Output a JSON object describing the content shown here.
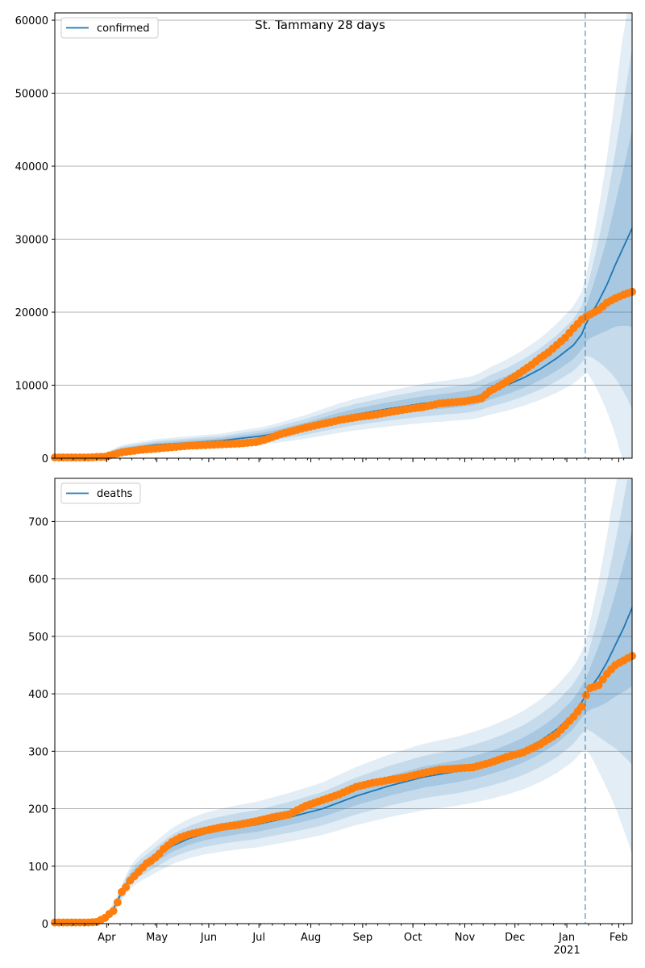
{
  "figure": {
    "title": "St. Tammany 28 days"
  },
  "colors": {
    "model": "#1f77b4",
    "observed": "#ff7f0e",
    "band": "#1f77b4",
    "grid": "#b0b0b0",
    "divider": "#1f77b4"
  },
  "x_axis": {
    "domain": [
      0,
      345
    ],
    "months": [
      {
        "label": "Apr",
        "day": 31
      },
      {
        "label": "May",
        "day": 61
      },
      {
        "label": "Jun",
        "day": 92
      },
      {
        "label": "Jul",
        "day": 122
      },
      {
        "label": "Aug",
        "day": 153
      },
      {
        "label": "Sep",
        "day": 184
      },
      {
        "label": "Oct",
        "day": 214
      },
      {
        "label": "Nov",
        "day": 245
      },
      {
        "label": "Dec",
        "day": 275
      },
      {
        "label": "Jan",
        "day": 306
      },
      {
        "label": "Feb",
        "day": 337
      }
    ],
    "year_label": "2021",
    "forecast_start_day": 317
  },
  "chart_data": [
    {
      "type": "line",
      "legend": [
        "confirmed"
      ],
      "ylim": [
        0,
        61000
      ],
      "yticks": [
        0,
        10000,
        20000,
        30000,
        40000,
        50000,
        60000
      ],
      "ytick_labels": [
        "0",
        "10000",
        "20000",
        "30000",
        "40000",
        "50000",
        "60000"
      ],
      "grid": true,
      "legend_position": "top-left",
      "model_curve": {
        "x": [
          0,
          20,
          30,
          40,
          50,
          60,
          80,
          100,
          110,
          122,
          130,
          140,
          150,
          160,
          170,
          180,
          200,
          220,
          240,
          250,
          255,
          260,
          270,
          280,
          290,
          300,
          310,
          315,
          317,
          320,
          325,
          330,
          335,
          340,
          345
        ],
        "y": [
          0,
          100,
          400,
          1200,
          1500,
          1800,
          2100,
          2400,
          2700,
          3000,
          3300,
          3800,
          4300,
          4900,
          5500,
          6000,
          6800,
          7500,
          8000,
          8300,
          8700,
          9200,
          10000,
          11000,
          12200,
          13700,
          15500,
          17000,
          18200,
          19500,
          21500,
          23800,
          26500,
          29000,
          31500
        ]
      },
      "band_scale": [
        0.12,
        0.22,
        0.33
      ],
      "observed": {
        "x": [
          0,
          10,
          20,
          30,
          40,
          50,
          60,
          70,
          80,
          90,
          100,
          110,
          120,
          125,
          130,
          135,
          140,
          150,
          160,
          170,
          180,
          190,
          200,
          210,
          220,
          230,
          240,
          245,
          250,
          255,
          260,
          265,
          270,
          275,
          280,
          285,
          290,
          295,
          300,
          305,
          310,
          315,
          317,
          320,
          325,
          330,
          335,
          340,
          345
        ],
        "y": [
          100,
          100,
          100,
          200,
          800,
          1100,
          1300,
          1500,
          1700,
          1800,
          1900,
          2000,
          2200,
          2500,
          2900,
          3300,
          3600,
          4200,
          4700,
          5200,
          5600,
          5900,
          6300,
          6700,
          7000,
          7500,
          7700,
          7800,
          8000,
          8200,
          9200,
          9800,
          10500,
          11200,
          12000,
          12800,
          13700,
          14500,
          15500,
          16500,
          17800,
          19000,
          19300,
          19700,
          20300,
          21300,
          21900,
          22400,
          22800
        ]
      }
    },
    {
      "type": "line",
      "legend": [
        "deaths"
      ],
      "ylim": [
        0,
        775
      ],
      "yticks": [
        0,
        100,
        200,
        300,
        400,
        500,
        600,
        700
      ],
      "ytick_labels": [
        "0",
        "100",
        "200",
        "300",
        "400",
        "500",
        "600",
        "700"
      ],
      "grid": true,
      "legend_position": "top-left",
      "model_curve": {
        "x": [
          0,
          20,
          25,
          30,
          35,
          40,
          45,
          50,
          55,
          60,
          70,
          80,
          90,
          100,
          110,
          120,
          140,
          160,
          180,
          200,
          220,
          240,
          250,
          260,
          270,
          280,
          290,
          300,
          310,
          317,
          320,
          325,
          330,
          335,
          340,
          345
        ],
        "y": [
          0,
          0,
          2,
          10,
          25,
          55,
          80,
          95,
          105,
          115,
          135,
          148,
          157,
          163,
          168,
          172,
          185,
          200,
          222,
          240,
          255,
          265,
          272,
          280,
          290,
          302,
          318,
          338,
          365,
          395,
          410,
          430,
          455,
          485,
          515,
          550
        ]
      },
      "band_scale": [
        0.07,
        0.14,
        0.22
      ],
      "observed": {
        "x": [
          0,
          10,
          20,
          25,
          30,
          33,
          35,
          38,
          40,
          43,
          45,
          50,
          55,
          58,
          60,
          62,
          65,
          70,
          75,
          80,
          90,
          100,
          110,
          120,
          130,
          140,
          150,
          160,
          170,
          180,
          190,
          200,
          210,
          220,
          230,
          240,
          250,
          260,
          270,
          280,
          290,
          300,
          305,
          310,
          315,
          317,
          320,
          325,
          330,
          335,
          340,
          345
        ],
        "y": [
          2,
          2,
          2,
          3,
          10,
          18,
          22,
          40,
          55,
          65,
          75,
          90,
          105,
          110,
          115,
          120,
          130,
          142,
          150,
          155,
          162,
          168,
          172,
          178,
          185,
          190,
          205,
          215,
          225,
          238,
          245,
          250,
          255,
          262,
          268,
          270,
          272,
          280,
          290,
          298,
          312,
          330,
          345,
          360,
          378,
          395,
          410,
          415,
          435,
          450,
          458,
          466
        ]
      }
    }
  ]
}
